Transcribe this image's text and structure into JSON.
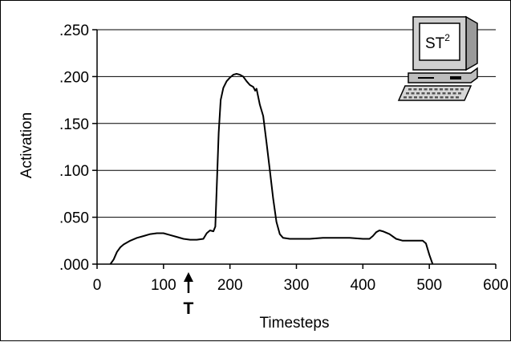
{
  "chart_data": {
    "type": "line",
    "title": "",
    "xlabel": "Timesteps",
    "ylabel": "Activation",
    "xlim": [
      0,
      600
    ],
    "ylim": [
      0,
      0.25
    ],
    "x_ticks": [
      0,
      100,
      200,
      300,
      400,
      500,
      600
    ],
    "x_tick_labels": [
      "0",
      "100",
      "200",
      "300",
      "400",
      "500",
      "600"
    ],
    "y_ticks": [
      0,
      0.05,
      0.1,
      0.15,
      0.2,
      0.25
    ],
    "y_tick_labels": [
      ".000",
      ".050",
      ".100",
      ".150",
      ".200",
      ".250"
    ],
    "grid": "horizontal",
    "marker": {
      "label": "T",
      "x": 140
    },
    "logo": {
      "text": "ST",
      "superscript": "2"
    },
    "series": [
      {
        "points": [
          [
            20,
            0.0
          ],
          [
            25,
            0.005
          ],
          [
            30,
            0.013
          ],
          [
            35,
            0.018
          ],
          [
            40,
            0.021
          ],
          [
            50,
            0.025
          ],
          [
            60,
            0.028
          ],
          [
            70,
            0.03
          ],
          [
            80,
            0.032
          ],
          [
            90,
            0.033
          ],
          [
            100,
            0.033
          ],
          [
            110,
            0.031
          ],
          [
            120,
            0.029
          ],
          [
            130,
            0.027
          ],
          [
            140,
            0.026
          ],
          [
            150,
            0.026
          ],
          [
            160,
            0.027
          ],
          [
            165,
            0.033
          ],
          [
            170,
            0.036
          ],
          [
            175,
            0.035
          ],
          [
            178,
            0.04
          ],
          [
            180,
            0.08
          ],
          [
            183,
            0.14
          ],
          [
            186,
            0.175
          ],
          [
            190,
            0.188
          ],
          [
            195,
            0.195
          ],
          [
            200,
            0.199
          ],
          [
            205,
            0.202
          ],
          [
            210,
            0.203
          ],
          [
            215,
            0.202
          ],
          [
            220,
            0.2
          ],
          [
            225,
            0.195
          ],
          [
            230,
            0.191
          ],
          [
            235,
            0.189
          ],
          [
            238,
            0.185
          ],
          [
            240,
            0.187
          ],
          [
            242,
            0.18
          ],
          [
            245,
            0.17
          ],
          [
            250,
            0.158
          ],
          [
            255,
            0.13
          ],
          [
            260,
            0.1
          ],
          [
            265,
            0.07
          ],
          [
            270,
            0.045
          ],
          [
            275,
            0.032
          ],
          [
            280,
            0.028
          ],
          [
            290,
            0.027
          ],
          [
            300,
            0.027
          ],
          [
            320,
            0.027
          ],
          [
            340,
            0.028
          ],
          [
            360,
            0.028
          ],
          [
            380,
            0.028
          ],
          [
            400,
            0.027
          ],
          [
            410,
            0.027
          ],
          [
            415,
            0.03
          ],
          [
            420,
            0.034
          ],
          [
            425,
            0.036
          ],
          [
            430,
            0.035
          ],
          [
            440,
            0.032
          ],
          [
            450,
            0.027
          ],
          [
            460,
            0.025
          ],
          [
            470,
            0.025
          ],
          [
            480,
            0.025
          ],
          [
            490,
            0.025
          ],
          [
            495,
            0.022
          ],
          [
            500,
            0.01
          ],
          [
            505,
            0.0
          ]
        ]
      }
    ]
  }
}
